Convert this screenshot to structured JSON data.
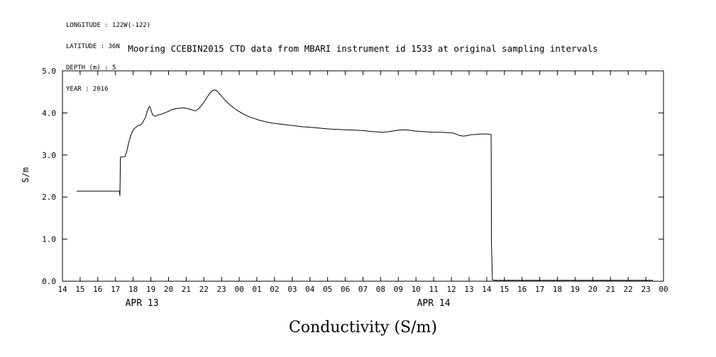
{
  "metadata": {
    "longitude": "LONGITUDE : 122W(-122)",
    "latitude": "LATITUDE : 36N",
    "depth": "DEPTH (m) : 5",
    "year": "YEAR : 2016"
  },
  "chart_data": {
    "type": "line",
    "title": "Mooring CCEBIN2015 CTD data from MBARI instrument id 1533 at original sampling intervals",
    "xlabel": "Conductivity (S/m)",
    "ylabel": "S/m",
    "xlim": [
      0,
      34
    ],
    "ylim": [
      0,
      5
    ],
    "x_unit": "hour of day, Apr 13 14:00 to Apr 15 00:00 2016",
    "grid": false,
    "legend": "none",
    "background_color": "#ffffff",
    "axis_color": "#000000",
    "line_color": "#000000",
    "x_tick_labels": [
      "14",
      "15",
      "16",
      "17",
      "18",
      "19",
      "20",
      "21",
      "22",
      "23",
      "00",
      "01",
      "02",
      "03",
      "04",
      "05",
      "06",
      "07",
      "08",
      "09",
      "10",
      "11",
      "12",
      "13",
      "14",
      "15",
      "16",
      "17",
      "18",
      "19",
      "20",
      "21",
      "22",
      "23",
      "00"
    ],
    "y_tick_labels": [
      "0.0",
      "1.0",
      "2.0",
      "3.0",
      "4.0",
      "5.0"
    ],
    "day_labels": [
      {
        "label": "APR 13",
        "t": 4.5
      },
      {
        "label": "APR 14",
        "t": 21
      }
    ],
    "series": [
      {
        "name": "conductivity",
        "points": [
          [
            0.8,
            2.14
          ],
          [
            1.5,
            2.14
          ],
          [
            2.5,
            2.14
          ],
          [
            3.22,
            2.14
          ],
          [
            3.25,
            2.03
          ],
          [
            3.28,
            2.95
          ],
          [
            3.55,
            2.96
          ],
          [
            3.65,
            3.1
          ],
          [
            3.75,
            3.3
          ],
          [
            3.85,
            3.44
          ],
          [
            3.95,
            3.55
          ],
          [
            4.05,
            3.62
          ],
          [
            4.15,
            3.66
          ],
          [
            4.3,
            3.7
          ],
          [
            4.45,
            3.72
          ],
          [
            4.55,
            3.78
          ],
          [
            4.7,
            3.9
          ],
          [
            4.8,
            4.05
          ],
          [
            4.88,
            4.13
          ],
          [
            4.95,
            4.15
          ],
          [
            5.02,
            4.05
          ],
          [
            5.1,
            3.95
          ],
          [
            5.25,
            3.92
          ],
          [
            5.4,
            3.95
          ],
          [
            5.6,
            3.97
          ],
          [
            5.8,
            4.0
          ],
          [
            6.0,
            4.04
          ],
          [
            6.2,
            4.08
          ],
          [
            6.4,
            4.1
          ],
          [
            6.6,
            4.11
          ],
          [
            6.8,
            4.12
          ],
          [
            7.0,
            4.11
          ],
          [
            7.2,
            4.09
          ],
          [
            7.4,
            4.06
          ],
          [
            7.55,
            4.05
          ],
          [
            7.7,
            4.1
          ],
          [
            7.85,
            4.17
          ],
          [
            8.0,
            4.25
          ],
          [
            8.15,
            4.35
          ],
          [
            8.3,
            4.45
          ],
          [
            8.45,
            4.52
          ],
          [
            8.6,
            4.55
          ],
          [
            8.75,
            4.52
          ],
          [
            8.9,
            4.45
          ],
          [
            9.05,
            4.37
          ],
          [
            9.25,
            4.28
          ],
          [
            9.5,
            4.18
          ],
          [
            9.75,
            4.1
          ],
          [
            10.0,
            4.03
          ],
          [
            10.3,
            3.96
          ],
          [
            10.6,
            3.9
          ],
          [
            10.9,
            3.86
          ],
          [
            11.2,
            3.82
          ],
          [
            11.6,
            3.78
          ],
          [
            12.0,
            3.75
          ],
          [
            12.4,
            3.73
          ],
          [
            12.8,
            3.71
          ],
          [
            13.2,
            3.69
          ],
          [
            13.6,
            3.67
          ],
          [
            14.0,
            3.66
          ],
          [
            14.5,
            3.64
          ],
          [
            15.0,
            3.62
          ],
          [
            15.5,
            3.61
          ],
          [
            16.0,
            3.6
          ],
          [
            16.5,
            3.59
          ],
          [
            17.0,
            3.58
          ],
          [
            17.4,
            3.56
          ],
          [
            17.8,
            3.55
          ],
          [
            18.1,
            3.54
          ],
          [
            18.4,
            3.55
          ],
          [
            18.7,
            3.57
          ],
          [
            19.0,
            3.59
          ],
          [
            19.3,
            3.6
          ],
          [
            19.6,
            3.59
          ],
          [
            19.9,
            3.57
          ],
          [
            20.2,
            3.56
          ],
          [
            20.6,
            3.55
          ],
          [
            21.0,
            3.54
          ],
          [
            21.4,
            3.54
          ],
          [
            21.8,
            3.53
          ],
          [
            22.1,
            3.52
          ],
          [
            22.3,
            3.49
          ],
          [
            22.5,
            3.46
          ],
          [
            22.7,
            3.45
          ],
          [
            22.9,
            3.46
          ],
          [
            23.1,
            3.48
          ],
          [
            23.4,
            3.49
          ],
          [
            23.7,
            3.5
          ],
          [
            24.0,
            3.5
          ],
          [
            24.2,
            3.49
          ],
          [
            24.25,
            3.48
          ],
          [
            24.27,
            0.9
          ],
          [
            24.32,
            0.03
          ],
          [
            24.5,
            0.02
          ],
          [
            25.0,
            0.02
          ],
          [
            26.0,
            0.02
          ],
          [
            27.0,
            0.02
          ],
          [
            28.0,
            0.02
          ],
          [
            29.0,
            0.02
          ],
          [
            30.0,
            0.02
          ],
          [
            31.0,
            0.02
          ],
          [
            32.0,
            0.02
          ],
          [
            33.0,
            0.02
          ],
          [
            33.4,
            0.02
          ]
        ]
      }
    ]
  }
}
